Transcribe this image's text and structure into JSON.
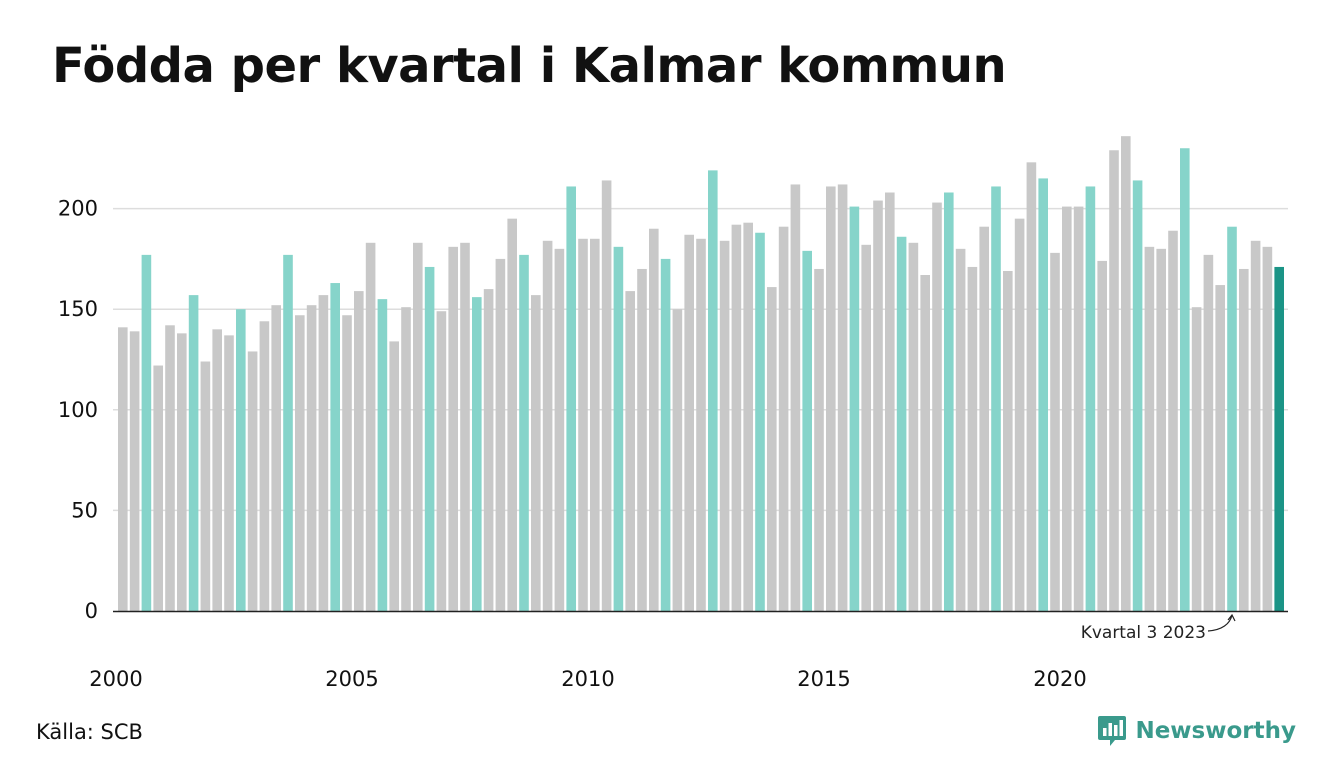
{
  "title": "Födda per kvartal i Kalmar kommun",
  "source": "Källa: SCB",
  "brand": {
    "name": "Newsworthy",
    "icon": "newsworthy-logo-icon"
  },
  "colors": {
    "default": "#c8c8c8",
    "same_quarter": "#86d4ca",
    "latest": "#1b9486",
    "grid": "#dddddd",
    "axis": "#222222"
  },
  "chart_data": {
    "type": "bar",
    "title": "Födda per kvartal i Kalmar kommun",
    "xlabel": "",
    "ylabel": "",
    "ylim": [
      0,
      240
    ],
    "yticks": [
      0,
      50,
      100,
      150,
      200
    ],
    "xticks": [
      "2000",
      "2005",
      "2010",
      "2015",
      "2020"
    ],
    "grid": true,
    "highlight_rule": "quarter 3 of each year highlighted, latest quarter in dark teal",
    "annotation": {
      "text": "Kvartal 3 2023",
      "target": "2023 Q3"
    },
    "categories": [
      "2000 Q1",
      "2000 Q2",
      "2000 Q3",
      "2000 Q4",
      "2001 Q1",
      "2001 Q2",
      "2001 Q3",
      "2001 Q4",
      "2002 Q1",
      "2002 Q2",
      "2002 Q3",
      "2002 Q4",
      "2003 Q1",
      "2003 Q2",
      "2003 Q3",
      "2003 Q4",
      "2004 Q1",
      "2004 Q2",
      "2004 Q3",
      "2004 Q4",
      "2005 Q1",
      "2005 Q2",
      "2005 Q3",
      "2005 Q4",
      "2006 Q1",
      "2006 Q2",
      "2006 Q3",
      "2006 Q4",
      "2007 Q1",
      "2007 Q2",
      "2007 Q3",
      "2007 Q4",
      "2008 Q1",
      "2008 Q2",
      "2008 Q3",
      "2008 Q4",
      "2009 Q1",
      "2009 Q2",
      "2009 Q3",
      "2009 Q4",
      "2010 Q1",
      "2010 Q2",
      "2010 Q3",
      "2010 Q4",
      "2011 Q1",
      "2011 Q2",
      "2011 Q3",
      "2011 Q4",
      "2012 Q1",
      "2012 Q2",
      "2012 Q3",
      "2012 Q4",
      "2013 Q1",
      "2013 Q2",
      "2013 Q3",
      "2013 Q4",
      "2014 Q1",
      "2014 Q2",
      "2014 Q3",
      "2014 Q4",
      "2015 Q1",
      "2015 Q2",
      "2015 Q3",
      "2015 Q4",
      "2016 Q1",
      "2016 Q2",
      "2016 Q3",
      "2016 Q4",
      "2017 Q1",
      "2017 Q2",
      "2017 Q3",
      "2017 Q4",
      "2018 Q1",
      "2018 Q2",
      "2018 Q3",
      "2018 Q4",
      "2019 Q1",
      "2019 Q2",
      "2019 Q3",
      "2019 Q4",
      "2020 Q1",
      "2020 Q2",
      "2020 Q3",
      "2020 Q4",
      "2021 Q1",
      "2021 Q2",
      "2021 Q3",
      "2021 Q4",
      "2022 Q1",
      "2022 Q2",
      "2022 Q3",
      "2022 Q4",
      "2023 Q1",
      "2023 Q2",
      "2023 Q3",
      "2023 Q4",
      "2024 Q1",
      "2024 Q2",
      "2024 Q3"
    ],
    "values": [
      141,
      139,
      177,
      122,
      142,
      138,
      157,
      124,
      140,
      137,
      150,
      129,
      144,
      152,
      177,
      147,
      152,
      157,
      163,
      147,
      159,
      183,
      155,
      134,
      151,
      183,
      171,
      149,
      181,
      183,
      156,
      160,
      175,
      195,
      177,
      157,
      184,
      180,
      211,
      185,
      185,
      214,
      181,
      159,
      170,
      190,
      175,
      150,
      187,
      185,
      219,
      184,
      192,
      193,
      188,
      161,
      191,
      212,
      179,
      170,
      211,
      212,
      201,
      182,
      204,
      208,
      186,
      183,
      167,
      203,
      208,
      180,
      171,
      191,
      211,
      169,
      195,
      223,
      215,
      178,
      201,
      201,
      211,
      174,
      229,
      236,
      214,
      181,
      180,
      189,
      230,
      151,
      177,
      162,
      191,
      170,
      184,
      181,
      171
    ]
  }
}
